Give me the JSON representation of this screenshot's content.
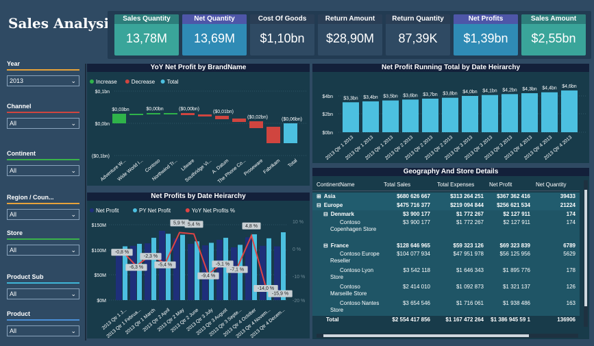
{
  "title": "Sales Analysis",
  "kpis": [
    {
      "label": "Sales Quantity",
      "value": "13,78M",
      "head": "#2d7e7b",
      "body": "#3aa59a"
    },
    {
      "label": "Net Quantity",
      "value": "13,69M",
      "head": "#4e56a8",
      "body": "#2f8bb5"
    },
    {
      "label": "Cost Of Goods",
      "value": "$1,10bn",
      "head": "#2a3e55",
      "body": "#2f4a63"
    },
    {
      "label": "Return Amount",
      "value": "$28,90M",
      "head": "#2a3e55",
      "body": "#2f4a63"
    },
    {
      "label": "Return Quantity",
      "value": "87,39K",
      "head": "#2a3e55",
      "body": "#2f4a63"
    },
    {
      "label": "Net Profits",
      "value": "$1,39bn",
      "head": "#4e56a8",
      "body": "#2f8bb5"
    },
    {
      "label": "Sales Amount",
      "value": "$2,55bn",
      "head": "#2d7e7b",
      "body": "#3aa59a"
    }
  ],
  "slicers": [
    {
      "label": "Year",
      "value": "2013",
      "color": "#e8a33a"
    },
    {
      "label": "Channel",
      "value": "All",
      "color": "#d0453f"
    },
    {
      "label": "Continent",
      "value": "All",
      "color": "#3bb34a"
    },
    {
      "label": "Region / Coun...",
      "value": "All",
      "color": "#e8a33a"
    },
    {
      "label": "Store",
      "value": "All",
      "color": "#3bb34a"
    },
    {
      "label": "Product Sub",
      "value": "All",
      "color": "#3fb6d8"
    },
    {
      "label": "Product",
      "value": "All",
      "color": "#4a90d9"
    }
  ],
  "waterfall": {
    "title": "YoY Net Profit by BrandName",
    "legend": [
      "Increase",
      "Decrease",
      "Total"
    ],
    "legend_colors": [
      "#2fb34a",
      "#d0453f",
      "#4cc0e0"
    ],
    "y_ticks": [
      "$0,1bn",
      "$0,0bn",
      "($0,1bn)"
    ],
    "categories": [
      "Adventure W...",
      "Wide World I...",
      "Contoso",
      "Northwind Tr...",
      "Litware",
      "Southridge Vi...",
      "A. Datum",
      "The Phone Co...",
      "Proseware",
      "Fabrikam",
      "Total"
    ],
    "labels": [
      "$0,03bn",
      "",
      "$0,00bn",
      "",
      "($0,00bn)",
      "",
      "($0,01bn)",
      "",
      "($0,02bn)",
      "",
      "($0,06bn)"
    ]
  },
  "running": {
    "title": "Net Profit Running Total by Date Heirarchy",
    "y_ticks": [
      "$4bn",
      "$2bn",
      "$0bn"
    ],
    "values": [
      3.3,
      3.4,
      3.5,
      3.6,
      3.7,
      3.8,
      4.0,
      4.1,
      4.2,
      4.3,
      4.4,
      4.6
    ],
    "labels": [
      "$3,3bn",
      "$3,4bn",
      "$3,5bn",
      "$3,6bn",
      "$3,7bn",
      "$3,8bn",
      "$4,0bn",
      "$4,1bn",
      "$4,2bn",
      "$4,3bn",
      "$4,4bn",
      "$4,6bn"
    ],
    "categories": [
      "2013 Qtr 1 2013",
      "2013 Qtr 1 2013",
      "2013 Qtr 1 2013",
      "2013 Qtr 2 2013",
      "2013 Qtr 2 2013",
      "2013 Qtr 2 2013",
      "2013 Qtr 3 2013",
      "2013 Qtr 3 2013",
      "2013 Qtr 3 2013",
      "2013 Qtr 4 2013",
      "2013 Qtr 4 2013",
      "2013 Qtr 4 2013"
    ]
  },
  "combo": {
    "title": "Net Profits by Date Heirarchy",
    "legend": [
      "Net Profit",
      "PY Net Profit",
      "YoY Net Profits %"
    ],
    "legend_colors": [
      "#1e2f7a",
      "#4cc0e0",
      "#e04444"
    ],
    "y_ticks": [
      "$150M",
      "$100M",
      "$50M",
      "$0M"
    ],
    "y2_ticks": [
      "10 %",
      "0 %",
      "-10 %",
      "-20 %"
    ],
    "net_profit": [
      100,
      108,
      113,
      138,
      123,
      112,
      109,
      120,
      105,
      125,
      108,
      107
    ],
    "py_net_profit": [
      107,
      112,
      124,
      132,
      130,
      117,
      114,
      124,
      110,
      131,
      123,
      135
    ],
    "yoy": [
      -0.8,
      -6.3,
      -2.3,
      -5.4,
      5.9,
      5.4,
      -9.4,
      -5.1,
      -7.1,
      4.8,
      -14.0,
      -15.9
    ],
    "yoy_labels": [
      "-0,8 %",
      "-6,3 %",
      "-2,3 %",
      "-5,4 %",
      "5,9 %",
      "5,4 %",
      "-9,4 %",
      "-5,1 %",
      "-7,1 %",
      "4,8 %",
      "-14,0 %",
      "-15,9 %"
    ],
    "categories": [
      "2013 Qtr 1 J...",
      "2013 Qtr 1 Februa...",
      "2013 Qtr 1 March",
      "2013 Qtr 2 April",
      "2013 Qtr 2 May",
      "2013 Qtr 2 June",
      "2013 Qtr 3 July",
      "2013 Qtr 3 August",
      "2013 Qtr 3 Septe...",
      "2013 Qtr 4 October",
      "2013 Qtr 4 Novem...",
      "2013 Qtr 4 Decem..."
    ]
  },
  "table": {
    "title": "Geography And Store Details",
    "headers": [
      "ContinentName",
      "Total Sales",
      "Total Expenses",
      "Net Profit",
      "Net Quantity"
    ],
    "rows": [
      {
        "indent": 0,
        "toggle": "⊞",
        "name": "Asia",
        "bold": true,
        "cells": [
          "$680 626 667",
          "$313 264 251",
          "$367 362 416",
          "39433"
        ]
      },
      {
        "indent": 0,
        "toggle": "⊟",
        "name": "Europe",
        "bold": true,
        "cells": [
          "$475 716 377",
          "$219 094 844",
          "$256 621 534",
          "21224"
        ]
      },
      {
        "indent": 1,
        "toggle": "⊟",
        "name": "Denmark",
        "bold": true,
        "cells": [
          "$3 900 177",
          "$1 772 267",
          "$2 127 911",
          "174"
        ]
      },
      {
        "indent": 2,
        "toggle": "",
        "name": "Contoso Copenhagen Store",
        "bold": false,
        "cells": [
          "$3 900 177",
          "$1 772 267",
          "$2 127 911",
          "174"
        ]
      },
      {
        "indent": 1,
        "toggle": "⊟",
        "name": "France",
        "bold": true,
        "cells": [
          "$128 646 965",
          "$59 323 126",
          "$69 323 839",
          "6789"
        ]
      },
      {
        "indent": 2,
        "toggle": "",
        "name": "Contoso Europe Reseller",
        "bold": false,
        "cells": [
          "$104 077 934",
          "$47 951 978",
          "$56 125 956",
          "5629"
        ]
      },
      {
        "indent": 2,
        "toggle": "",
        "name": "Contoso Lyon Store",
        "bold": false,
        "cells": [
          "$3 542 118",
          "$1 646 343",
          "$1 895 776",
          "178"
        ]
      },
      {
        "indent": 2,
        "toggle": "",
        "name": "Contoso Marseille Store",
        "bold": false,
        "cells": [
          "$2 414 010",
          "$1 092 873",
          "$1 321 137",
          "126"
        ]
      },
      {
        "indent": 2,
        "toggle": "",
        "name": "Contoso Nantes Store",
        "bold": false,
        "cells": [
          "$3 654 546",
          "$1 716 061",
          "$1 938 486",
          "163"
        ]
      },
      {
        "indent": 0,
        "toggle": "",
        "name": "Total",
        "bold": true,
        "cells": [
          "$2 554 417 856",
          "$1 167 472 264",
          "$1 386 945 59 1",
          "136906"
        ]
      }
    ]
  }
}
